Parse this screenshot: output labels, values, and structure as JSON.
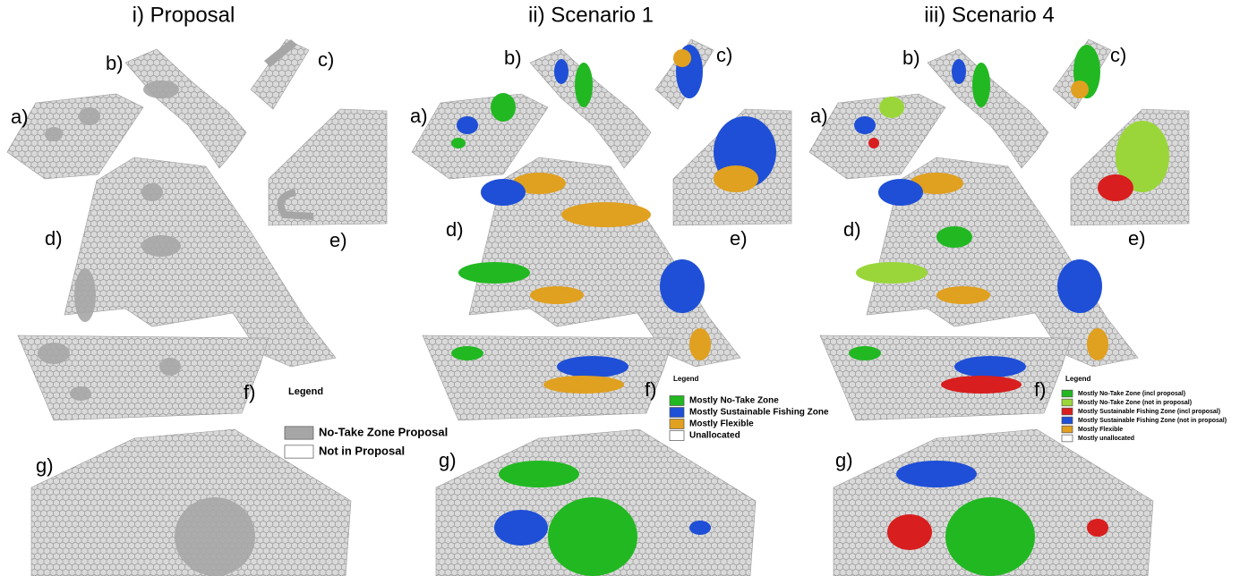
{
  "panels": [
    {
      "title": "i) Proposal",
      "labels": [
        "a)",
        "b)",
        "c)",
        "d)",
        "e)",
        "f)",
        "g)"
      ],
      "legend": {
        "title": "Legend",
        "items": [
          {
            "label": "No-Take Zone Proposal",
            "color": "#a6a6a6"
          },
          {
            "label": "Not in Proposal",
            "color": "#ffffff"
          }
        ]
      }
    },
    {
      "title": "ii) Scenario 1",
      "labels": [
        "a)",
        "b)",
        "c)",
        "d)",
        "e)",
        "f)",
        "g)"
      ],
      "legend": {
        "title": "Legend",
        "items": [
          {
            "label": "Mostly No-Take Zone",
            "color": "#22b822"
          },
          {
            "label": "Mostly Sustainable Fishing Zone",
            "color": "#1f4fd6"
          },
          {
            "label": "Mostly Flexible",
            "color": "#e0a020"
          },
          {
            "label": "Unallocated",
            "color": "#ffffff"
          }
        ]
      }
    },
    {
      "title": "iii) Scenario 4",
      "labels": [
        "a)",
        "b)",
        "c)",
        "d)",
        "e)",
        "f)",
        "g)"
      ],
      "legend": {
        "title": "Legend",
        "items": [
          {
            "label": "Mostly No-Take Zone (incl proposal)",
            "color": "#22b822"
          },
          {
            "label": "Mostly No-Take Zone (not in proposal)",
            "color": "#9ad63a"
          },
          {
            "label": "Mostly Sustainable Fishing Zone (incl proposal)",
            "color": "#d81e1e"
          },
          {
            "label": "Mostly Sustainable Fishing Zone (not in proposal)",
            "color": "#1f4fd6"
          },
          {
            "label": "Mostly Flexible",
            "color": "#e0a020"
          },
          {
            "label": "Mostly unallocated",
            "color": "#ffffff"
          }
        ]
      }
    }
  ]
}
